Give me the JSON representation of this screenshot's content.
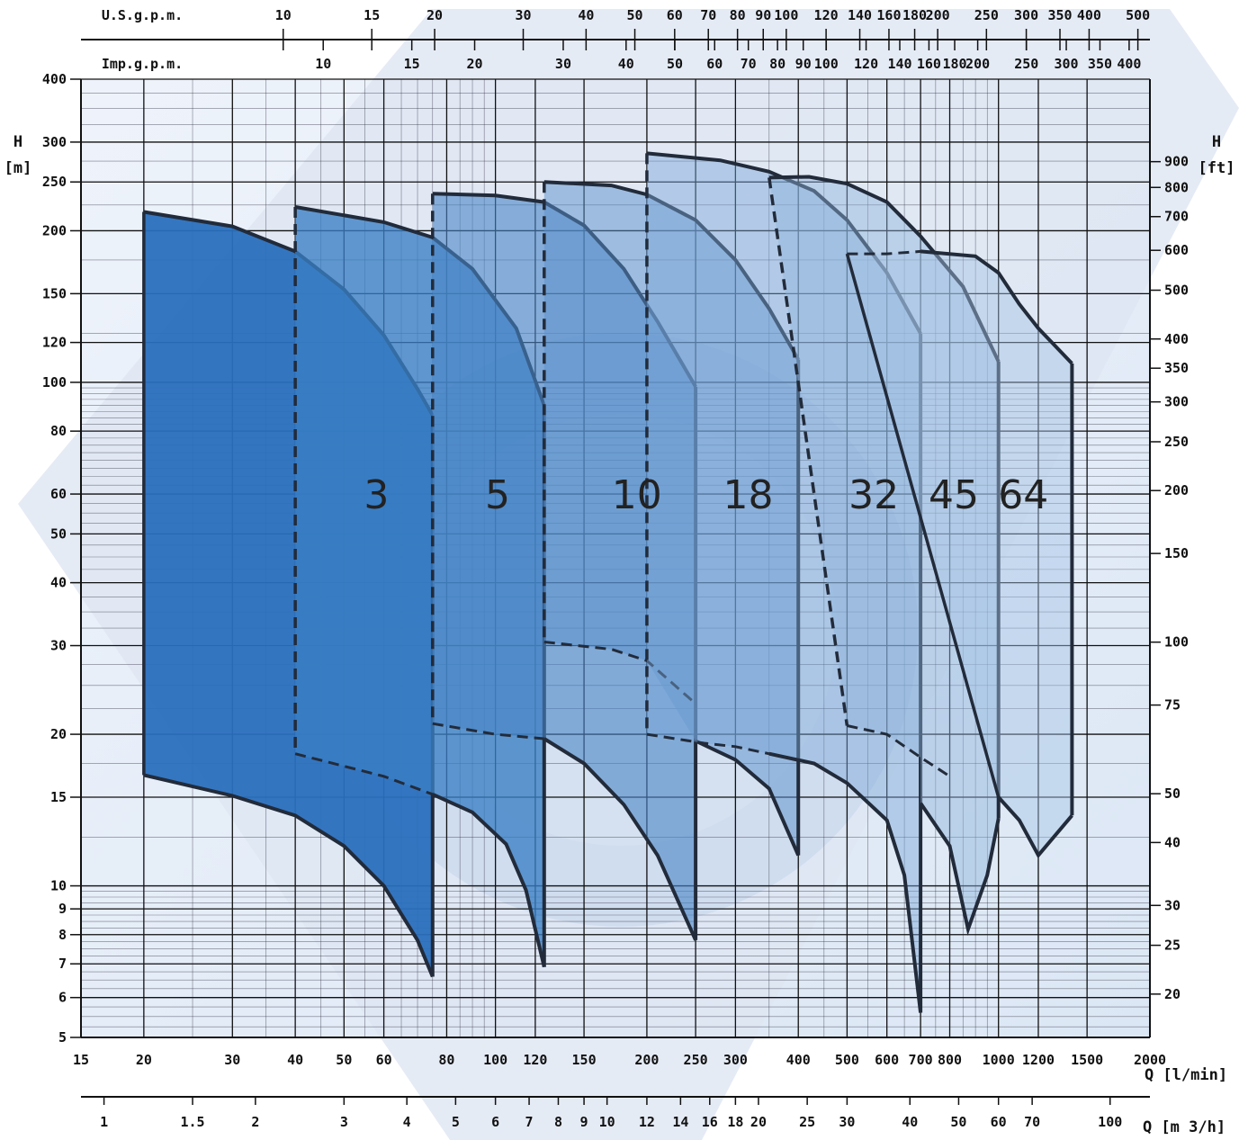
{
  "chart_data": {
    "type": "line",
    "title": "",
    "x_scale": "log",
    "y_scale": "log",
    "xlim": [
      15,
      2000
    ],
    "ylim": [
      5,
      400
    ],
    "xlabel": "Q [l/min]",
    "ylabel": "H [m]",
    "ylabel_top": "H",
    "ylabel_unit": "[m]",
    "y2label_top": "H",
    "y2label_unit": "[ft]",
    "x2label": "Q [m 3/h]",
    "top_axis_1_label": "U.S.g.p.m.",
    "top_axis_2_label": "Imp.g.p.m.",
    "x_ticks": [
      "15",
      "20",
      "30",
      "40",
      "50",
      "60",
      "80",
      "100",
      "120",
      "150",
      "200",
      "250",
      "300",
      "400",
      "500",
      "600",
      "700",
      "800",
      "1000",
      "1200",
      "1500",
      "2000"
    ],
    "y_ticks": [
      "5",
      "6",
      "7",
      "8",
      "9",
      "10",
      "15",
      "20",
      "30",
      "40",
      "50",
      "60",
      "80",
      "100",
      "120",
      "150",
      "200",
      "250",
      "300",
      "400"
    ],
    "ft_ticks": [
      "20",
      "25",
      "30",
      "40",
      "50",
      "75",
      "100",
      "150",
      "200",
      "250",
      "300",
      "350",
      "400",
      "500",
      "600",
      "700",
      "800",
      "900"
    ],
    "m3h_ticks": [
      "1",
      "1.5",
      "2",
      "3",
      "4",
      "5",
      "6",
      "7",
      "8",
      "9",
      "10",
      "12",
      "14",
      "16",
      "18",
      "20",
      "25",
      "30",
      "40",
      "50",
      "60",
      "70",
      "100"
    ],
    "usgpm_ticks": [
      "10",
      "15",
      "20",
      "30",
      "40",
      "50",
      "60",
      "70",
      "80",
      "90",
      "100",
      "120",
      "140",
      "160",
      "180",
      "200",
      "250",
      "300",
      "350",
      "400",
      "500"
    ],
    "impgpm_ticks": [
      "10",
      "15",
      "20",
      "30",
      "40",
      "50",
      "60",
      "70",
      "80",
      "90",
      "100",
      "120",
      "140",
      "160",
      "180",
      "200",
      "250",
      "300",
      "350",
      "400"
    ],
    "series": [
      {
        "name": "3",
        "label_at": [
          58,
          60
        ],
        "color": "#2a6fbd",
        "opacity": 0.95,
        "top": [
          [
            20,
            218
          ],
          [
            30,
            204
          ],
          [
            40,
            182
          ],
          [
            50,
            153
          ],
          [
            60,
            124
          ],
          [
            70,
            97
          ],
          [
            75,
            86
          ]
        ],
        "bottom": [
          [
            20,
            16.6
          ],
          [
            30,
            15.1
          ],
          [
            40,
            13.8
          ],
          [
            50,
            12.0
          ],
          [
            60,
            10.0
          ],
          [
            70,
            7.8
          ],
          [
            75,
            6.6
          ]
        ],
        "dashed_top": [],
        "dashed_bottom": []
      },
      {
        "name": "5",
        "label_at": [
          101,
          60
        ],
        "color": "#3a7fc4",
        "opacity": 0.78,
        "top": [
          [
            40,
            223
          ],
          [
            60,
            208
          ],
          [
            75,
            194
          ],
          [
            90,
            168
          ],
          [
            110,
            128
          ],
          [
            125,
            90
          ]
        ],
        "bottom": [
          [
            75,
            15.2
          ],
          [
            90,
            14.0
          ],
          [
            105,
            12.1
          ],
          [
            115,
            9.8
          ],
          [
            125,
            6.9
          ]
        ],
        "dashed_top": [],
        "dashed_bottom": [
          [
            40,
            18.3
          ],
          [
            60,
            16.5
          ],
          [
            75,
            15.2
          ]
        ]
      },
      {
        "name": "10",
        "label_at": [
          191,
          60
        ],
        "color": "#4a86c6",
        "opacity": 0.6,
        "top": [
          [
            75,
            237
          ],
          [
            100,
            235
          ],
          [
            125,
            228
          ],
          [
            150,
            205
          ],
          [
            180,
            168
          ],
          [
            210,
            132
          ],
          [
            250,
            98
          ]
        ],
        "bottom": [
          [
            125,
            19.6
          ],
          [
            150,
            17.5
          ],
          [
            180,
            14.5
          ],
          [
            210,
            11.5
          ],
          [
            250,
            7.8
          ]
        ],
        "dashed_top": [],
        "dashed_bottom": [
          [
            75,
            21
          ],
          [
            100,
            20
          ],
          [
            125,
            19.6
          ]
        ]
      },
      {
        "name": "18",
        "label_at": [
          318,
          60
        ],
        "color": "#5a90cb",
        "opacity": 0.5,
        "top": [
          [
            125,
            250
          ],
          [
            170,
            246
          ],
          [
            200,
            236
          ],
          [
            250,
            210
          ],
          [
            300,
            175
          ],
          [
            350,
            140
          ],
          [
            400,
            111
          ]
        ],
        "bottom": [
          [
            250,
            19.4
          ],
          [
            300,
            17.8
          ],
          [
            350,
            15.6
          ],
          [
            400,
            11.5
          ]
        ],
        "dashed_top": [],
        "dashed_bottom": [
          [
            125,
            30.5
          ],
          [
            170,
            29.5
          ],
          [
            200,
            28
          ],
          [
            250,
            23
          ]
        ]
      },
      {
        "name": "32",
        "label_at": [
          565,
          60
        ],
        "color": "#7aa6d6",
        "opacity": 0.45,
        "top": [
          [
            200,
            285
          ],
          [
            280,
            276
          ],
          [
            350,
            262
          ],
          [
            430,
            240
          ],
          [
            500,
            210
          ],
          [
            600,
            165
          ],
          [
            700,
            125
          ]
        ],
        "bottom": [
          [
            350,
            18.3
          ],
          [
            430,
            17.5
          ],
          [
            500,
            16.0
          ],
          [
            600,
            13.5
          ],
          [
            650,
            10.5
          ],
          [
            700,
            5.6
          ]
        ],
        "dashed_top": [],
        "dashed_bottom": [
          [
            200,
            20
          ],
          [
            260,
            19.2
          ],
          [
            300,
            18.9
          ],
          [
            350,
            18.3
          ]
        ]
      },
      {
        "name": "45",
        "label_at": [
          815,
          60
        ],
        "color": "#8db3dc",
        "opacity": 0.45,
        "top": [
          [
            350,
            255
          ],
          [
            420,
            256
          ],
          [
            500,
            248
          ],
          [
            600,
            228
          ],
          [
            700,
            195
          ],
          [
            850,
            155
          ],
          [
            1000,
            110
          ]
        ],
        "bottom": [
          [
            700,
            14.6
          ],
          [
            800,
            12.0
          ],
          [
            870,
            8.2
          ],
          [
            950,
            10.5
          ],
          [
            1000,
            13.6
          ]
        ],
        "dashed_top": [],
        "dashed_bottom": [
          [
            500,
            20.8
          ],
          [
            600,
            20.0
          ],
          [
            700,
            18.0
          ],
          [
            800,
            16.5
          ]
        ]
      },
      {
        "name": "64",
        "label_at": [
          1120,
          60
        ],
        "color": "#a5c3e4",
        "opacity": 0.45,
        "top": [
          [
            700,
            182
          ],
          [
            900,
            178
          ],
          [
            1000,
            165
          ],
          [
            1100,
            143
          ],
          [
            1200,
            128
          ],
          [
            1400,
            109
          ]
        ],
        "bottom": [
          [
            1000,
            15
          ],
          [
            1100,
            13.5
          ],
          [
            1200,
            11.5
          ],
          [
            1400,
            13.8
          ]
        ],
        "dashed_top": [
          [
            500,
            180
          ],
          [
            600,
            180
          ],
          [
            700,
            182
          ]
        ],
        "dashed_bottom": []
      }
    ]
  }
}
